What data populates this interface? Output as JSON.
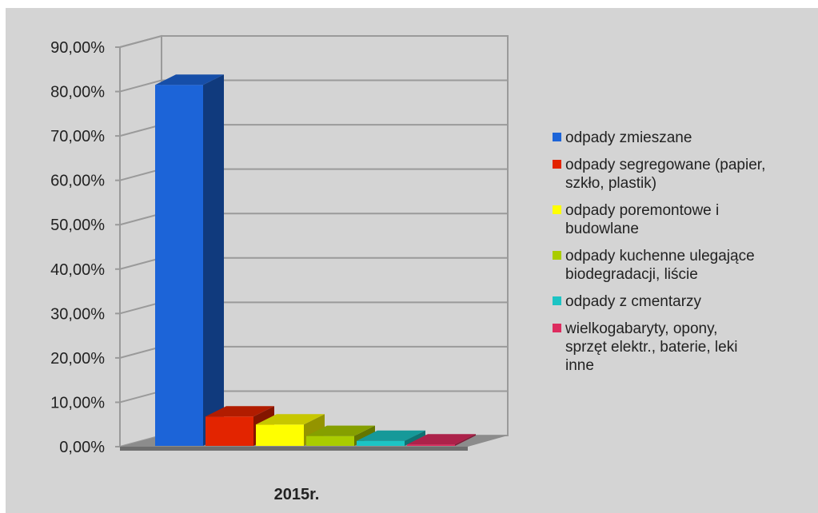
{
  "chart_data": {
    "type": "bar",
    "style": "3d-clustered-column",
    "categories": [
      "2015r."
    ],
    "series": [
      {
        "name": "odpady zmieszane",
        "color": "#1c64d8",
        "values": [
          81.5
        ]
      },
      {
        "name": "odpady segregowane (papier, szkło, plastik)",
        "color": "#e32400",
        "values": [
          6.8
        ]
      },
      {
        "name": "odpady poremontowe i budowlane",
        "color": "#ffff00",
        "values": [
          5.0
        ]
      },
      {
        "name": "odpady kuchenne ulegające biodegradacji, liście",
        "color": "#aacc00",
        "values": [
          2.4
        ]
      },
      {
        "name": "odpady z cmentarzy",
        "color": "#1cc4c4",
        "values": [
          1.3
        ]
      },
      {
        "name": "wielkogabaryty, opony, sprzęt elektr., baterie, leki inne",
        "color": "#dd2c5f",
        "values": [
          0.5
        ]
      }
    ],
    "ylim": [
      0,
      90
    ],
    "yticks": [
      0,
      10,
      20,
      30,
      40,
      50,
      60,
      70,
      80,
      90
    ],
    "ytick_labels": [
      "0,00%",
      "10,00%",
      "20,00%",
      "30,00%",
      "40,00%",
      "50,00%",
      "60,00%",
      "70,00%",
      "80,00%",
      "90,00%"
    ],
    "grid": true,
    "legend_position": "right",
    "legend_lines": [
      [
        "odpady zmieszane"
      ],
      [
        "odpady segregowane (papier,",
        "szkło, plastik)"
      ],
      [
        "odpady poremontowe i",
        "budowlane"
      ],
      [
        "odpady kuchenne ulegające",
        "biodegradacji, liście"
      ],
      [
        "odpady z cmentarzy"
      ],
      [
        "wielkogabaryty, opony,",
        "sprzęt elektr., baterie, leki",
        "inne"
      ]
    ]
  }
}
